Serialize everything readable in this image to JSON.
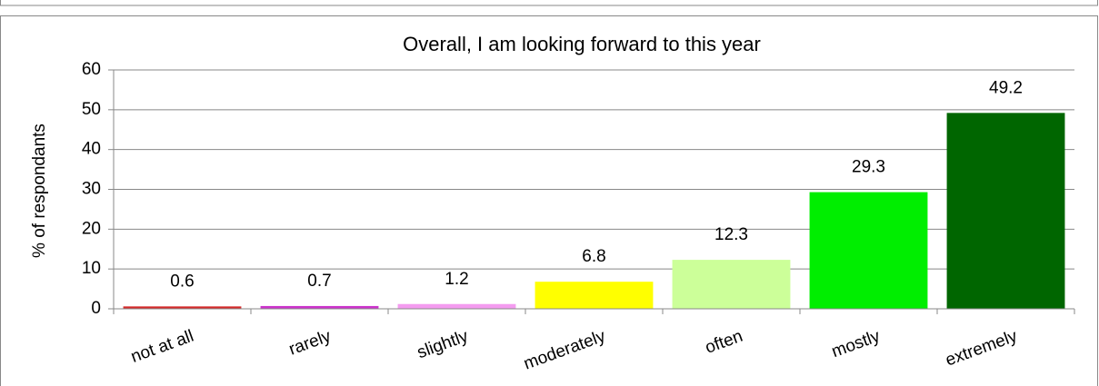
{
  "chart_data": {
    "type": "bar",
    "title": "Overall, I am looking forward to this year",
    "y_label": "% of respondants",
    "categories": [
      "not at all",
      "rarely",
      "slightly",
      "moderately",
      "often",
      "mostly",
      "extremely"
    ],
    "values": [
      0.6,
      0.7,
      1.2,
      6.8,
      12.3,
      29.3,
      49.2
    ],
    "colors": [
      "#d42a2a",
      "#cc33cc",
      "#f49cf0",
      "#ffff00",
      "#ccff99",
      "#00ee00",
      "#006600"
    ],
    "ylim": [
      0,
      60
    ],
    "yticks": [
      0,
      10,
      20,
      30,
      40,
      50,
      60
    ],
    "grid": true
  }
}
